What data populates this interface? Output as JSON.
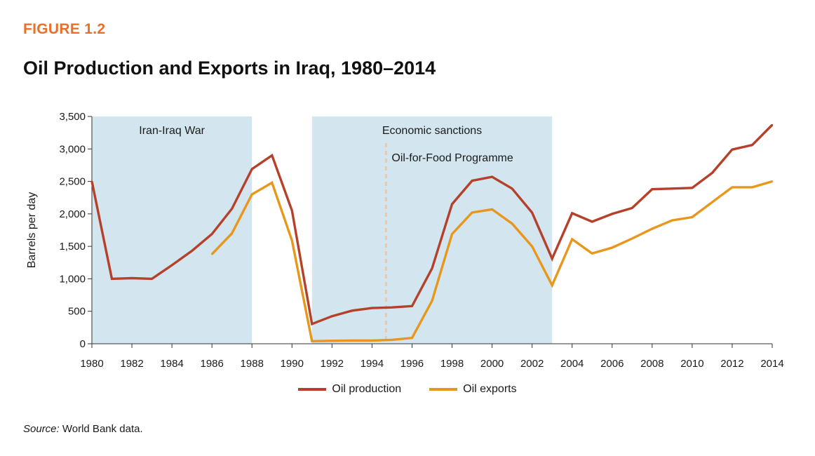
{
  "figure": {
    "label": "FIGURE 1.2",
    "title": "Oil Production and Exports in Iraq, 1980–2014",
    "source_prefix": "Source:",
    "source_text": " World Bank data."
  },
  "colors": {
    "production": "#b5412b",
    "exports": "#e8971c",
    "shade": "#d3e6ef",
    "divider": "#f2c6a4",
    "accent": "#e8702a"
  },
  "chart_data": {
    "type": "line",
    "title": "Oil Production and Exports in Iraq, 1980–2014",
    "xlabel": "",
    "ylabel": "Barrels per day",
    "xlim": [
      1980,
      2014
    ],
    "ylim": [
      0,
      3500
    ],
    "xticks": [
      1980,
      1982,
      1984,
      1986,
      1988,
      1990,
      1992,
      1994,
      1996,
      1998,
      2000,
      2002,
      2004,
      2006,
      2008,
      2010,
      2012,
      2014
    ],
    "yticks": [
      0,
      500,
      1000,
      1500,
      2000,
      2500,
      3000,
      3500
    ],
    "ytick_labels": [
      "0",
      "500",
      "1,000",
      "1,500",
      "2,000",
      "2,500",
      "3,000",
      "3,500"
    ],
    "regions": [
      {
        "label": "Iran-Iraq War",
        "x0": 1980,
        "x1": 1988
      },
      {
        "label": "Economic sanctions",
        "x0": 1991,
        "x1": 2003
      }
    ],
    "markers": [
      {
        "label": "Oil-for-Food Programme",
        "x": 1994.7
      }
    ],
    "legend_position": "bottom-center",
    "series": [
      {
        "name": "Oil production",
        "x": [
          1980,
          1981,
          1982,
          1983,
          1984,
          1985,
          1986,
          1987,
          1988,
          1989,
          1990,
          1991,
          1992,
          1993,
          1994,
          1995,
          1996,
          1997,
          1998,
          1999,
          2000,
          2001,
          2002,
          2003,
          2004,
          2005,
          2006,
          2007,
          2008,
          2009,
          2010,
          2011,
          2012,
          2013,
          2014
        ],
        "values": [
          2500,
          1000,
          1010,
          1000,
          1210,
          1430,
          1690,
          2080,
          2690,
          2900,
          2050,
          305,
          425,
          510,
          550,
          560,
          580,
          1160,
          2150,
          2510,
          2570,
          2390,
          2020,
          1310,
          2010,
          1880,
          2000,
          2090,
          2380,
          2390,
          2400,
          2630,
          2990,
          3060,
          3370
        ]
      },
      {
        "name": "Oil exports",
        "x": [
          1986,
          1987,
          1988,
          1989,
          1990,
          1991,
          1992,
          1993,
          1994,
          1995,
          1996,
          1997,
          1998,
          1999,
          2000,
          2001,
          2002,
          2003,
          2004,
          2005,
          2006,
          2007,
          2008,
          2009,
          2010,
          2011,
          2012,
          2013,
          2014
        ],
        "values": [
          1380,
          1700,
          2300,
          2480,
          1590,
          40,
          45,
          50,
          50,
          60,
          90,
          660,
          1690,
          2020,
          2070,
          1850,
          1500,
          900,
          1610,
          1390,
          1480,
          1620,
          1770,
          1900,
          1950,
          2180,
          2410,
          2410,
          2500
        ]
      }
    ]
  }
}
